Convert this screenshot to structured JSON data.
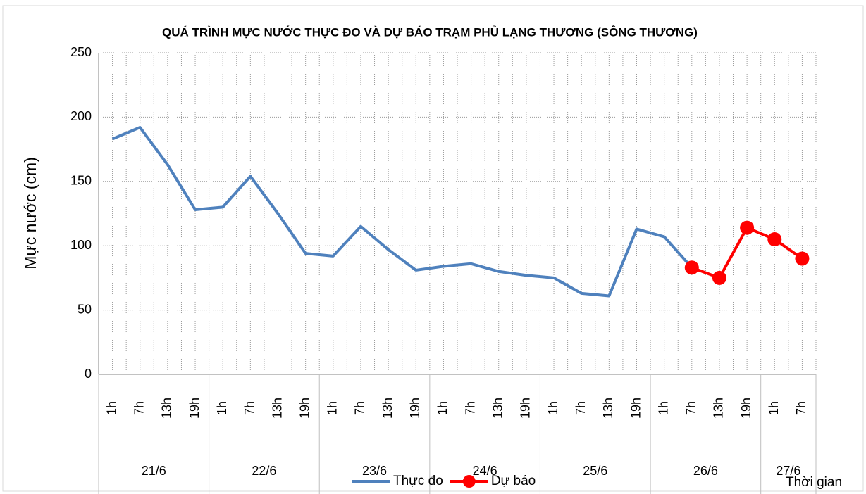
{
  "chart_data": {
    "type": "line",
    "title": "QUÁ TRÌNH MỰC NƯỚC THỰC ĐO VÀ DỰ BÁO TRẠM PHỦ LẠNG THƯƠNG (SÔNG THƯƠNG)",
    "y_label": "Mực nước (cm)",
    "x_label": "Thời gian",
    "categories": [
      "1h",
      "7h",
      "13h",
      "19h",
      "1h",
      "7h",
      "13h",
      "19h",
      "1h",
      "7h",
      "13h",
      "19h",
      "1h",
      "7h",
      "13h",
      "19h",
      "1h",
      "7h",
      "13h",
      "19h",
      "1h",
      "7h",
      "13h",
      "19h",
      "1h",
      "7h"
    ],
    "x_groups": [
      {
        "label": "21/6",
        "count": 4
      },
      {
        "label": "22/6",
        "count": 4
      },
      {
        "label": "23/6",
        "count": 4
      },
      {
        "label": "24/6",
        "count": 4
      },
      {
        "label": "25/6",
        "count": 4
      },
      {
        "label": "26/6",
        "count": 4
      },
      {
        "label": "27/6",
        "count": 2
      }
    ],
    "series": [
      {
        "name": "Thực đo",
        "color": "#4f81bd",
        "marker": false,
        "values": [
          183,
          192,
          163,
          128,
          130,
          154,
          125,
          94,
          92,
          115,
          97,
          81,
          84,
          86,
          80,
          77,
          75,
          63,
          61,
          113,
          107,
          83,
          null,
          null,
          null,
          null
        ]
      },
      {
        "name": "Dự báo",
        "color": "#ff0000",
        "marker": true,
        "values": [
          null,
          null,
          null,
          null,
          null,
          null,
          null,
          null,
          null,
          null,
          null,
          null,
          null,
          null,
          null,
          null,
          null,
          null,
          null,
          null,
          null,
          83,
          75,
          114,
          105,
          90
        ]
      }
    ],
    "ylim": [
      0,
      250
    ],
    "yticks": [
      0,
      50,
      100,
      150,
      200,
      250
    ],
    "grid": true,
    "legend": "bottom"
  }
}
